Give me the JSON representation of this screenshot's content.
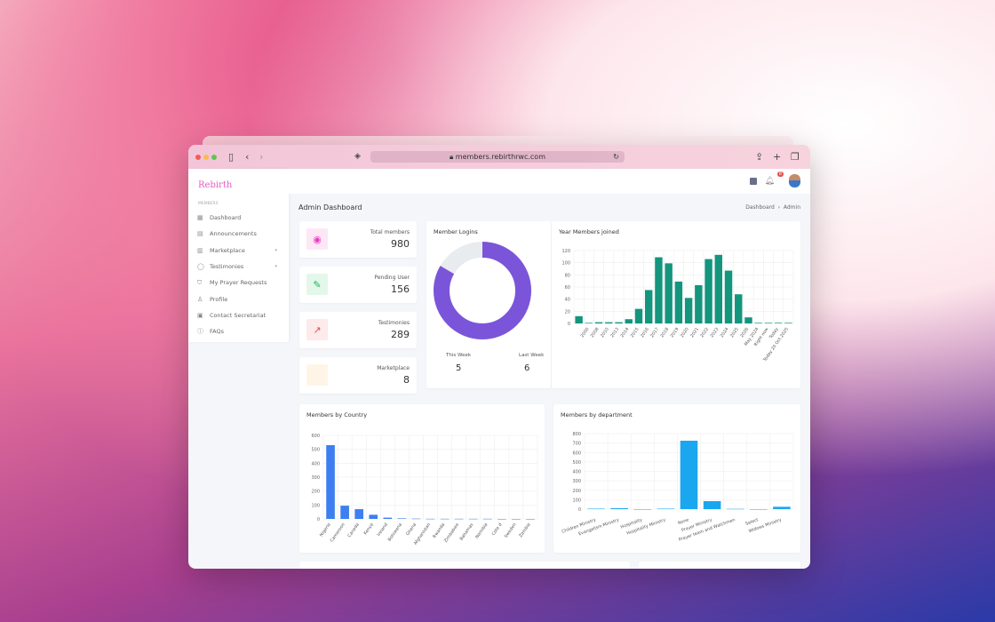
{
  "browser": {
    "url": "members.rebirthrwc.com"
  },
  "sidebar": {
    "logo": "Rebirth",
    "section": "MEMBERS",
    "items": [
      {
        "label": "Dashboard",
        "icon": "grid-icon"
      },
      {
        "label": "Announcements",
        "icon": "calendar-icon"
      },
      {
        "label": "Marketplace",
        "icon": "store-icon",
        "chevron": true
      },
      {
        "label": "Testimonies",
        "icon": "chat-icon",
        "chevron": true
      },
      {
        "label": "My Prayer Requests",
        "icon": "shield-icon"
      },
      {
        "label": "Profile",
        "icon": "user-icon"
      },
      {
        "label": "Contact Secretariat",
        "icon": "contact-card-icon"
      },
      {
        "label": "FAQs",
        "icon": "help-icon"
      }
    ]
  },
  "header": {
    "notification_count": "8"
  },
  "page": {
    "title": "Admin Dashboard",
    "breadcrumb": [
      "Dashboard",
      "Admin"
    ],
    "sep": "›"
  },
  "stats": [
    {
      "label": "Total members",
      "value": "980",
      "icon": "eye-icon",
      "color": "#e83fc0",
      "bg": "#fde7f6"
    },
    {
      "label": "Pending User",
      "value": "156",
      "icon": "edit-icon",
      "color": "#22b455",
      "bg": "#e3f7ea"
    },
    {
      "label": "Testimonies",
      "value": "289",
      "icon": "trending-up-icon",
      "color": "#ea4d4d",
      "bg": "#fdeaea"
    },
    {
      "label": "Marketplace",
      "value": "8",
      "icon": "",
      "color": "#f5a623",
      "bg": "#fff5e6"
    }
  ],
  "logins": {
    "title": "Member Logins",
    "this_week_label": "This Week",
    "this_week": 5,
    "last_week_label": "Last Week",
    "last_week": 6,
    "colors": [
      "#7b55d9",
      "#e9ecef"
    ]
  },
  "chart_data": [
    {
      "type": "bar",
      "title": "Year Members joined",
      "color": "#14957e",
      "ylim": [
        0,
        120
      ],
      "yticks": [
        0,
        20,
        40,
        60,
        80,
        100,
        120
      ],
      "grid": true,
      "categories": [
        "",
        "2000",
        "2008",
        "2010",
        "2013",
        "2014",
        "2015",
        "2016",
        "2017",
        "2018",
        "2019",
        "2020",
        "2021",
        "2022",
        "2023",
        "2024",
        "2025",
        "2026",
        "May 2024",
        "Right now",
        "Today",
        "Today 20 Oct 2025"
      ],
      "values": [
        12,
        1,
        2,
        2,
        2,
        7,
        24,
        55,
        109,
        99,
        69,
        42,
        63,
        106,
        113,
        87,
        48,
        10,
        1,
        1,
        1,
        1
      ]
    },
    {
      "type": "bar",
      "title": "Members by Country",
      "color": "#3d7ff0",
      "ylim": [
        0,
        600
      ],
      "yticks": [
        0,
        100,
        200,
        300,
        400,
        500,
        600
      ],
      "grid": true,
      "categories": [
        "Nigeria",
        "Cameroon",
        "Canada",
        "Kenya",
        "Ireland",
        "Botswana",
        "Ghana",
        "Afghanistan",
        "Rwanda",
        "Zimbabwe",
        "Bahamas",
        "Namibia",
        "Cote d",
        "Sweden",
        "Zambia"
      ],
      "values": [
        530,
        95,
        70,
        30,
        9,
        4,
        2,
        1,
        1,
        1,
        1,
        1,
        0,
        0,
        0
      ]
    },
    {
      "type": "bar",
      "title": "Members by department",
      "color": "#1aa7f0",
      "ylim": [
        0,
        800
      ],
      "yticks": [
        0,
        100,
        200,
        300,
        400,
        500,
        600,
        700,
        800
      ],
      "grid": true,
      "categories": [
        "Children Ministry",
        "Evangelism Ministry",
        "Hospitality",
        "Hospitality Ministry",
        "None",
        "Prayer Ministry",
        "Prayer team and Watchmen",
        "Select",
        "Widows Ministry"
      ],
      "values": [
        5,
        10,
        0,
        5,
        725,
        85,
        3,
        0,
        25
      ]
    }
  ]
}
